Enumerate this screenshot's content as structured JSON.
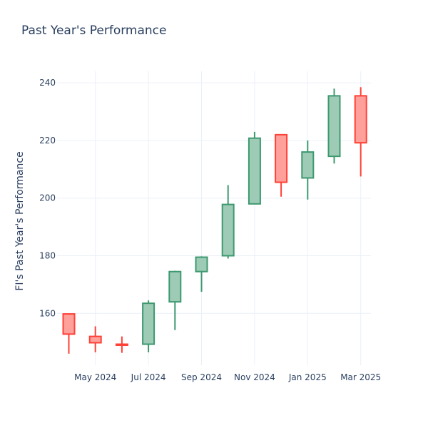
{
  "chart_data": {
    "type": "candlestick",
    "title": "Past Year's Performance",
    "xlabel": "",
    "ylabel": "FI's Past Year's Performance",
    "ylim": [
      142,
      244
    ],
    "y_ticks": [
      160,
      180,
      200,
      220,
      240
    ],
    "x_ticks": [
      {
        "label": "May 2024",
        "index": 1
      },
      {
        "label": "Jul 2024",
        "index": 3
      },
      {
        "label": "Sep 2024",
        "index": 5
      },
      {
        "label": "Nov 2024",
        "index": 7
      },
      {
        "label": "Jan 2025",
        "index": 9
      },
      {
        "label": "Mar 2025",
        "index": 11
      }
    ],
    "increasing_color": "#3d9970",
    "increasing_fill": "#9ecbb5",
    "decreasing_color": "#ff4136",
    "decreasing_fill": "#ffa09b",
    "candles": [
      {
        "period": "Apr 2024",
        "open": 159.8,
        "high": 159.8,
        "low": 146.0,
        "close": 152.8
      },
      {
        "period": "May 2024",
        "open": 152.0,
        "high": 155.5,
        "low": 146.5,
        "close": 149.8
      },
      {
        "period": "Jun 2024",
        "open": 149.3,
        "high": 152.0,
        "low": 146.3,
        "close": 149.0
      },
      {
        "period": "Jul 2024",
        "open": 149.3,
        "high": 164.5,
        "low": 146.5,
        "close": 163.5
      },
      {
        "period": "Aug 2024",
        "open": 164.0,
        "high": 174.8,
        "low": 154.2,
        "close": 174.5
      },
      {
        "period": "Sep 2024",
        "open": 174.5,
        "high": 179.8,
        "low": 167.5,
        "close": 179.5
      },
      {
        "period": "Oct 2024",
        "open": 180.0,
        "high": 204.5,
        "low": 179.0,
        "close": 197.8
      },
      {
        "period": "Nov 2024",
        "open": 198.0,
        "high": 223.0,
        "low": 198.0,
        "close": 220.8
      },
      {
        "period": "Dec 2024",
        "open": 222.0,
        "high": 222.0,
        "low": 200.5,
        "close": 205.5
      },
      {
        "period": "Jan 2025",
        "open": 207.0,
        "high": 220.0,
        "low": 199.5,
        "close": 216.0
      },
      {
        "period": "Feb 2025",
        "open": 214.5,
        "high": 238.0,
        "low": 212.0,
        "close": 235.5
      },
      {
        "period": "Mar 2025",
        "open": 235.5,
        "high": 238.5,
        "low": 207.5,
        "close": 219.2
      }
    ]
  }
}
